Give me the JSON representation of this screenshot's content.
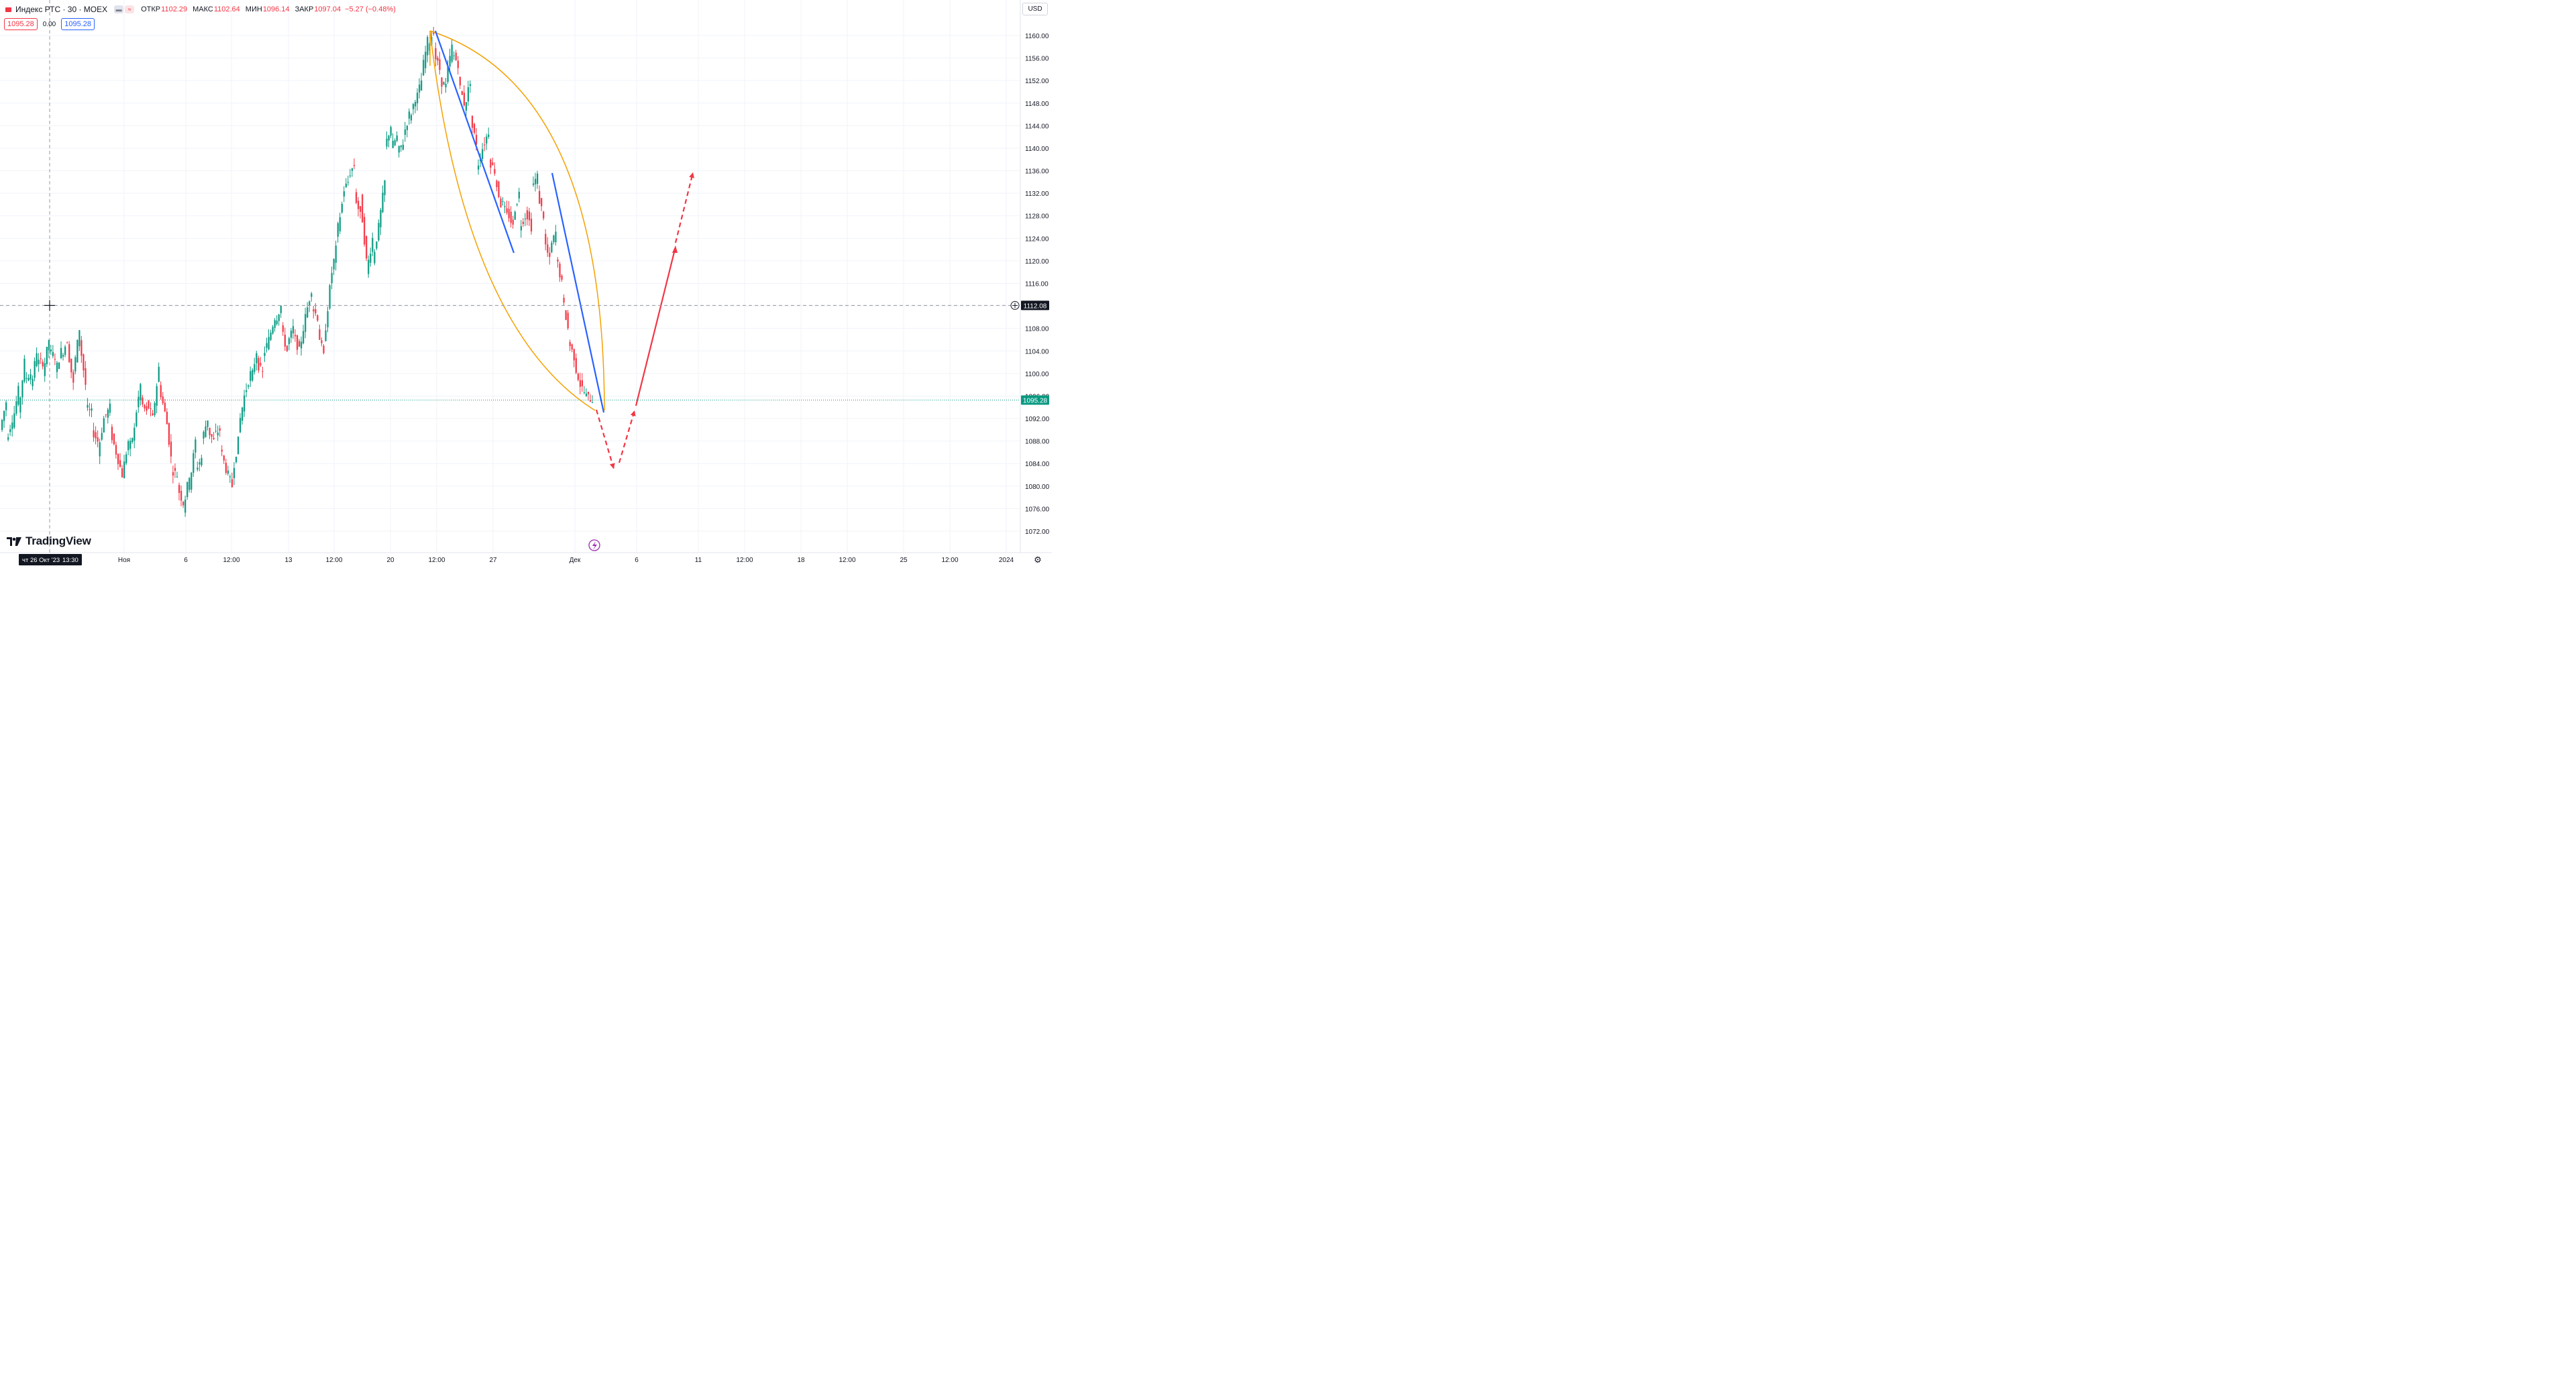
{
  "header": {
    "symbol": "Индекс РТС · 30 · MOEX",
    "open_label": "ОТКР",
    "open_value": "1102.29",
    "high_label": "МАКС",
    "high_value": "1102.64",
    "low_label": "МИН",
    "low_value": "1096.14",
    "close_label": "ЗАКР",
    "close_value": "1097.04",
    "change": "−5.27 (−0.48%)"
  },
  "trade_panel": {
    "sell": "1095.28",
    "spread": "0.00",
    "buy": "1095.28"
  },
  "currency": "USD",
  "logo_text": "TradingView",
  "colors": {
    "up": "#089981",
    "down": "#f23645",
    "trend": "#2962ff",
    "arc": "#f5a000",
    "forecast": "#f23645",
    "grid": "#f0f3fa"
  },
  "chart_data": {
    "type": "candlestick",
    "y_ticks": [
      "1160.00",
      "1156.00",
      "1152.00",
      "1148.00",
      "1144.00",
      "1140.00",
      "1136.00",
      "1132.00",
      "1128.00",
      "1124.00",
      "1120.00",
      "1116.00",
      "1112.00",
      "1108.00",
      "1104.00",
      "1100.00",
      "1096.00",
      "1092.00",
      "1088.00",
      "1084.00",
      "1080.00",
      "1076.00",
      "1072.00"
    ],
    "x_ticks": [
      "Ноя",
      "6",
      "12:00",
      "13",
      "12:00",
      "20",
      "12:00",
      "27",
      "Дек",
      "6",
      "11",
      "12:00",
      "18",
      "12:00",
      "25",
      "12:00",
      "2024"
    ],
    "ylim": [
      1070.5,
      1163.5
    ],
    "last_price": "1095.28",
    "crosshair_price": "1112.08",
    "crosshair_date": "чт 26 Окт '23",
    "crosshair_time": "13:30",
    "series_path": [
      [
        1090,
        1095
      ],
      [
        1088,
        1092
      ],
      [
        1091,
        1097
      ],
      [
        1093,
        1102
      ],
      [
        1099,
        1100
      ],
      [
        1097,
        1104
      ],
      [
        1102,
        1102
      ],
      [
        1100,
        1106
      ],
      [
        1104,
        1103
      ],
      [
        1100,
        1104
      ],
      [
        1103,
        1106
      ],
      [
        1105,
        1098
      ],
      [
        1100,
        1108
      ],
      [
        1106,
        1098
      ],
      [
        1094,
        1093
      ],
      [
        1090,
        1088
      ],
      [
        1086,
        1092
      ],
      [
        1092,
        1094
      ],
      [
        1090,
        1086
      ],
      [
        1086,
        1082
      ],
      [
        1082,
        1088
      ],
      [
        1086,
        1090
      ],
      [
        1091,
        1098
      ],
      [
        1095,
        1093
      ],
      [
        1095,
        1092
      ],
      [
        1092,
        1101
      ],
      [
        1098,
        1093
      ],
      [
        1094,
        1085
      ],
      [
        1083,
        1082
      ],
      [
        1080,
        1077
      ],
      [
        1076,
        1082
      ],
      [
        1080,
        1088
      ],
      [
        1083,
        1085
      ],
      [
        1088,
        1092
      ],
      [
        1090,
        1088
      ],
      [
        1089,
        1090
      ],
      [
        1087,
        1083
      ],
      [
        1083,
        1080
      ],
      [
        1082,
        1088
      ],
      [
        1090,
        1096
      ],
      [
        1096,
        1100
      ],
      [
        1098,
        1104
      ],
      [
        1102,
        1100
      ],
      [
        1103,
        1106
      ],
      [
        1106,
        1110
      ],
      [
        1109,
        1112
      ],
      [
        1108,
        1104
      ],
      [
        1105,
        1108
      ],
      [
        1107,
        1104
      ],
      [
        1104,
        1110
      ],
      [
        1110,
        1115
      ],
      [
        1112,
        1110
      ],
      [
        1108,
        1103
      ],
      [
        1105,
        1115
      ],
      [
        1116,
        1122
      ],
      [
        1124,
        1130
      ],
      [
        1132,
        1134
      ],
      [
        1135,
        1137
      ],
      [
        1132,
        1128
      ],
      [
        1131,
        1120
      ],
      [
        1118,
        1124
      ],
      [
        1120,
        1126
      ],
      [
        1126,
        1134
      ],
      [
        1140,
        1144
      ],
      [
        1140,
        1142
      ],
      [
        1139,
        1141
      ],
      [
        1142,
        1146
      ],
      [
        1145,
        1149
      ],
      [
        1148,
        1152
      ],
      [
        1153,
        1159
      ],
      [
        1158,
        1161
      ],
      [
        1157,
        1154
      ],
      [
        1152,
        1151
      ],
      [
        1152,
        1158
      ],
      [
        1157,
        1155
      ],
      [
        1152,
        1148
      ],
      [
        1147,
        1152
      ],
      [
        1145,
        1141
      ],
      [
        1136,
        1140
      ],
      [
        1140,
        1143
      ],
      [
        1138,
        1136
      ],
      [
        1135,
        1130
      ],
      [
        1131,
        1128
      ],
      [
        1129,
        1126
      ],
      [
        1128,
        1132
      ],
      [
        1126,
        1128
      ],
      [
        1129,
        1126
      ],
      [
        1133,
        1135
      ],
      [
        1132,
        1128
      ],
      [
        1124,
        1120
      ],
      [
        1122,
        1125
      ],
      [
        1121,
        1116
      ],
      [
        1114,
        1108
      ],
      [
        1106,
        1103
      ],
      [
        1102,
        1098
      ],
      [
        1098,
        1096
      ],
      [
        1096,
        1095.3
      ]
    ],
    "trend_lines": [
      {
        "from": [
          0,
          1161
        ],
        "to": [
          15,
          1121.5
        ]
      },
      {
        "from": [
          22,
          1135.5
        ],
        "to": [
          38,
          1093
        ]
      }
    ],
    "projection": [
      {
        "from": [
          1095,
          1094
        ],
        "to": [
          1096.5,
          1083.5
        ],
        "style": "dashed"
      },
      {
        "from": [
          1096.5,
          1083.5
        ],
        "to": [
          1098,
          1092.5
        ],
        "style": "dashed"
      },
      {
        "from": [
          1098,
          1094
        ],
        "to": [
          1101,
          1122.5
        ],
        "style": "solid"
      },
      {
        "from": [
          1101,
          1125
        ],
        "to": [
          1103,
          1135.5
        ],
        "style": "dashed"
      }
    ]
  }
}
